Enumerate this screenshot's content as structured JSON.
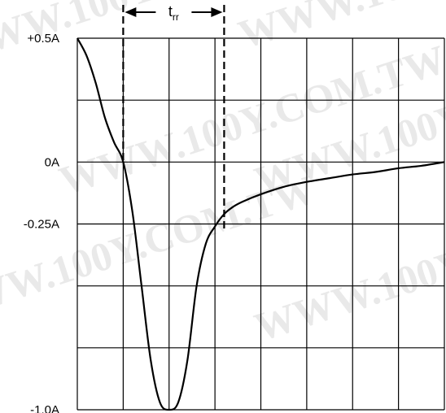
{
  "chart_data": {
    "type": "line",
    "title": "",
    "xlabel": "",
    "ylabel": "",
    "ylim": [
      -1.0,
      0.5
    ],
    "y_ticks": [
      {
        "value": 0.5,
        "label": "+0.5A"
      },
      {
        "value": 0.0,
        "label": "0A"
      },
      {
        "value": -0.25,
        "label": "-0.25A"
      },
      {
        "value": -1.0,
        "label": "-1.0A"
      }
    ],
    "grid": true,
    "grid_divisions": {
      "x": 8,
      "y": 6
    },
    "series": [
      {
        "x": [
          0,
          0.2,
          0.4,
          0.6,
          0.8,
          1.0,
          1.2,
          1.4,
          1.6,
          1.8,
          2.0,
          2.2,
          2.4,
          2.6,
          2.8,
          3.0,
          3.2,
          3.4,
          3.6,
          4.0,
          4.5,
          5.0,
          5.5,
          6.0,
          6.5,
          7.0,
          7.5,
          8.0
        ],
        "values": [
          0.5,
          0.43,
          0.32,
          0.18,
          0.08,
          0.0,
          -0.2,
          -0.5,
          -0.8,
          -0.97,
          -1.0,
          -0.97,
          -0.8,
          -0.5,
          -0.33,
          -0.26,
          -0.21,
          -0.18,
          -0.16,
          -0.13,
          -0.1,
          -0.08,
          -0.065,
          -0.05,
          -0.04,
          -0.025,
          -0.015,
          0.0
        ]
      }
    ],
    "annotations": [
      {
        "type": "interval",
        "label": "t",
        "label_sub": "rr",
        "x_start": 1.0,
        "x_end": 3.2
      }
    ]
  },
  "watermark": {
    "lines": [
      "WWW.100Y.COM.TW",
      "WWW.100Y.COM.TW",
      "WWW.100Y.COM.TW",
      "WWW.100Y.COM.TW"
    ],
    "color": "#d8d8d8"
  }
}
